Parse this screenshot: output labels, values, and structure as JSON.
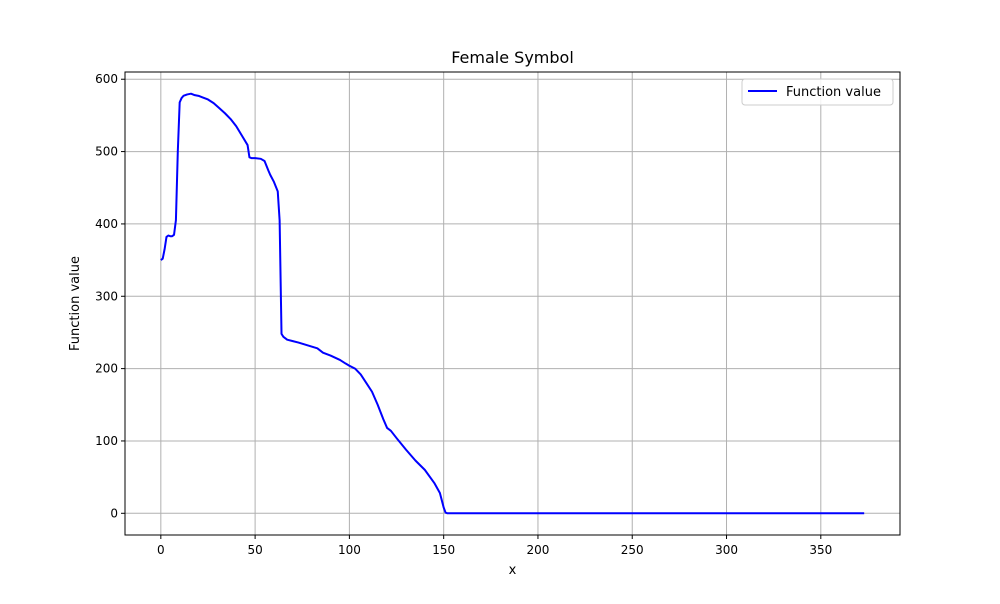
{
  "chart_data": {
    "type": "line",
    "title": "Female Symbol",
    "xlabel": "x",
    "ylabel": "Function value",
    "xlim": [
      -19,
      392
    ],
    "ylim": [
      -30,
      610
    ],
    "x_ticks": [
      0,
      50,
      100,
      150,
      200,
      250,
      300,
      350
    ],
    "y_ticks": [
      0,
      100,
      200,
      300,
      400,
      500,
      600
    ],
    "grid": true,
    "legend": {
      "position": "top-right",
      "entries": [
        "Function value"
      ]
    },
    "series": [
      {
        "name": "Function value",
        "color": "#0000ff",
        "x": [
          0,
          1,
          2,
          3,
          4,
          5,
          6,
          7,
          8,
          9,
          10,
          11,
          12,
          14,
          16,
          18,
          20,
          22,
          25,
          28,
          31,
          34,
          37,
          40,
          43,
          46,
          47,
          48,
          50,
          53,
          55,
          57,
          58,
          60,
          62,
          63,
          64,
          65,
          67,
          70,
          73,
          78,
          83,
          86,
          90,
          95,
          98,
          100,
          103,
          106,
          109,
          112,
          115,
          118,
          120,
          122,
          125,
          130,
          135,
          140,
          145,
          148,
          150,
          151,
          152,
          153,
          155,
          160,
          200,
          250,
          300,
          350,
          373
        ],
        "values": [
          350,
          352,
          365,
          382,
          384,
          383,
          383,
          385,
          405,
          500,
          568,
          574,
          577,
          579,
          580,
          578,
          577,
          575,
          572,
          567,
          560,
          553,
          545,
          535,
          522,
          509,
          492,
          491,
          491,
          490,
          487,
          474,
          468,
          458,
          445,
          405,
          248,
          244,
          240,
          238,
          236,
          232,
          228,
          222,
          218,
          212,
          207,
          204,
          200,
          192,
          180,
          168,
          150,
          130,
          118,
          114,
          104,
          88,
          73,
          60,
          42,
          28,
          8,
          1,
          0,
          0,
          0,
          0,
          0,
          0,
          0,
          0,
          0
        ]
      }
    ]
  }
}
